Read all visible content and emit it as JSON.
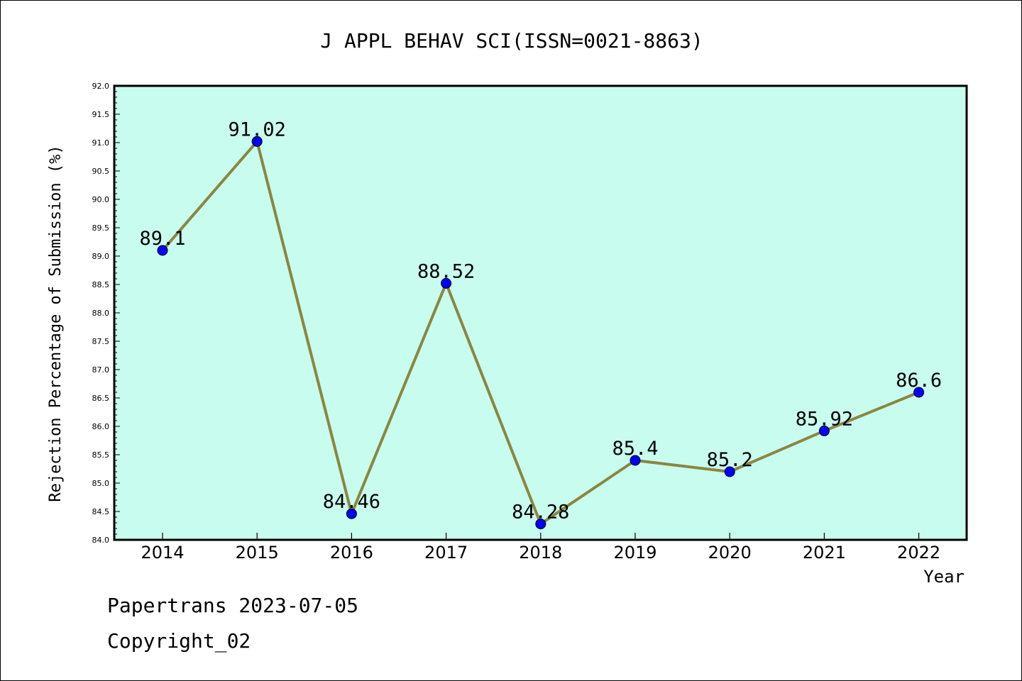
{
  "chart_data": {
    "type": "line",
    "title": "J APPL BEHAV SCI(ISSN=0021-8863)",
    "xlabel": "Year",
    "ylabel": "Rejection Percentage of Submission (%)",
    "categories": [
      "2014",
      "2015",
      "2016",
      "2017",
      "2018",
      "2019",
      "2020",
      "2021",
      "2022"
    ],
    "values": [
      89.1,
      91.02,
      84.46,
      88.52,
      84.28,
      85.4,
      85.2,
      85.92,
      86.6
    ],
    "data_labels": [
      "89.1",
      "91.02",
      "84.46",
      "88.52",
      "84.28",
      "85.4",
      "85.2",
      "85.92",
      "86.6"
    ],
    "ylim": [
      84.0,
      92.0
    ],
    "yticks": [
      "84.0",
      "84.5",
      "85.0",
      "85.5",
      "86.0",
      "86.5",
      "87.0",
      "87.5",
      "88.0",
      "88.5",
      "89.0",
      "89.5",
      "90.0",
      "90.5",
      "91.0",
      "91.5",
      "92.0"
    ],
    "grid": false,
    "colors": {
      "plot_background": "#c8fcee",
      "line": "#8b8640",
      "marker": "#0000ff"
    }
  },
  "footer": {
    "line1": "Papertrans 2023-07-05",
    "line2": "Copyright_02"
  }
}
